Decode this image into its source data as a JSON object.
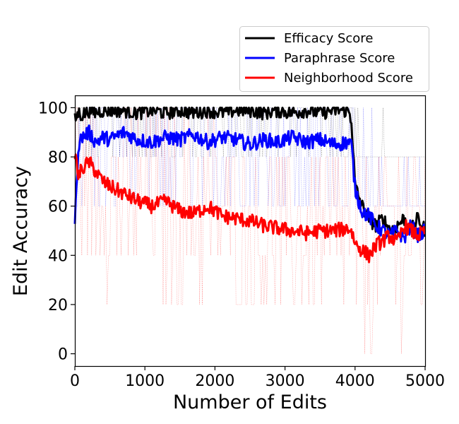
{
  "chart_data": {
    "type": "line",
    "title": "",
    "xlabel": "Number of Edits",
    "ylabel": "Edit Accuracy",
    "xlim": [
      0,
      5000
    ],
    "ylim": [
      -5,
      105
    ],
    "xticks": [
      0,
      1000,
      2000,
      3000,
      4000,
      5000
    ],
    "yticks": [
      0,
      20,
      40,
      60,
      80,
      100
    ],
    "xtick_labels": [
      "0",
      "1000",
      "2000",
      "3000",
      "4000",
      "5000"
    ],
    "ytick_labels": [
      "0",
      "20",
      "40",
      "60",
      "80",
      "100"
    ],
    "grid": false,
    "legend_position": "top-right",
    "series": [
      {
        "name": "Efficacy Score",
        "color": "#000000",
        "raw_min": 80,
        "x": [
          0,
          50,
          100,
          200,
          300,
          400,
          500,
          700,
          900,
          1100,
          1300,
          1500,
          1700,
          1900,
          2100,
          2300,
          2500,
          2700,
          2900,
          3100,
          3300,
          3500,
          3700,
          3900,
          3950,
          4000,
          4100,
          4200,
          4300,
          4400,
          4500,
          4600,
          4700,
          4800,
          4900,
          5000
        ],
        "values": [
          95,
          98,
          97,
          99,
          98,
          99,
          99,
          99,
          98,
          99,
          98,
          99,
          98,
          99,
          98,
          99,
          99,
          98,
          99,
          98,
          99,
          98,
          99,
          99,
          95,
          68,
          60,
          55,
          52,
          55,
          50,
          52,
          55,
          50,
          55,
          50
        ]
      },
      {
        "name": "Paraphrase Score",
        "color": "#0000ff",
        "raw_min": 60,
        "x": [
          0,
          50,
          100,
          200,
          300,
          400,
          500,
          700,
          900,
          1100,
          1300,
          1500,
          1700,
          1900,
          2100,
          2300,
          2500,
          2700,
          2900,
          3100,
          3300,
          3500,
          3700,
          3900,
          3950,
          4000,
          4100,
          4200,
          4300,
          4400,
          4500,
          4600,
          4700,
          4800,
          4900,
          5000
        ],
        "values": [
          52,
          85,
          88,
          90,
          86,
          88,
          87,
          90,
          87,
          86,
          88,
          87,
          89,
          86,
          88,
          87,
          85,
          87,
          86,
          88,
          86,
          87,
          85,
          86,
          85,
          67,
          58,
          56,
          52,
          50,
          48,
          50,
          47,
          52,
          48,
          50
        ]
      },
      {
        "name": "Neighborhood Score",
        "color": "#ff0000",
        "raw_min": 0,
        "x": [
          0,
          50,
          100,
          200,
          300,
          400,
          500,
          700,
          900,
          1100,
          1300,
          1500,
          1700,
          1900,
          2100,
          2300,
          2500,
          2700,
          2900,
          3100,
          3300,
          3500,
          3700,
          3900,
          3950,
          4000,
          4100,
          4200,
          4300,
          4400,
          4500,
          4600,
          4700,
          4800,
          4900,
          5000
        ],
        "values": [
          82,
          72,
          75,
          78,
          74,
          70,
          68,
          65,
          62,
          60,
          62,
          58,
          57,
          60,
          56,
          55,
          54,
          52,
          51,
          50,
          49,
          50,
          50,
          51,
          50,
          45,
          42,
          40,
          44,
          46,
          48,
          45,
          52,
          50,
          48,
          50
        ]
      }
    ]
  }
}
